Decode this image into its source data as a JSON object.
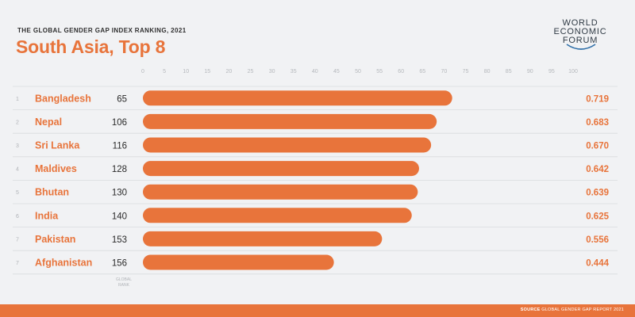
{
  "header": {
    "kicker": "THE GLOBAL GENDER GAP INDEX RANKING, 2021",
    "title": "South Asia, Top 8"
  },
  "logo": {
    "line1": "WORLD",
    "line2": "ECONOMIC",
    "line3": "FORUM"
  },
  "footer": {
    "source_label": "SOURCE",
    "source_text": "GLOBAL GENDER GAP REPORT 2021"
  },
  "colors": {
    "accent": "#e8743b",
    "background": "#f1f2f4",
    "footer": "#e8743b"
  },
  "chart_data": {
    "type": "bar",
    "orientation": "horizontal",
    "x_ticks": [
      "0",
      "5",
      "10",
      "15",
      "20",
      "25",
      "30",
      "35",
      "40",
      "45",
      "50",
      "55",
      "60",
      "65",
      "70",
      "75",
      "80",
      "85",
      "90",
      "95",
      "100"
    ],
    "xlim": [
      0,
      100
    ],
    "rank_column_label": [
      "GLOBAL",
      "RANK"
    ],
    "rows": [
      {
        "order": "1",
        "country": "Bangladesh",
        "global_rank": "65",
        "score": 0.719,
        "label": "0.719"
      },
      {
        "order": "2",
        "country": "Nepal",
        "global_rank": "106",
        "score": 0.683,
        "label": "0.683"
      },
      {
        "order": "3",
        "country": "Sri Lanka",
        "global_rank": "116",
        "score": 0.67,
        "label": "0.670"
      },
      {
        "order": "4",
        "country": "Maldives",
        "global_rank": "128",
        "score": 0.642,
        "label": "0.642"
      },
      {
        "order": "5",
        "country": "Bhutan",
        "global_rank": "130",
        "score": 0.639,
        "label": "0.639"
      },
      {
        "order": "6",
        "country": "India",
        "global_rank": "140",
        "score": 0.625,
        "label": "0.625"
      },
      {
        "order": "7",
        "country": "Pakistan",
        "global_rank": "153",
        "score": 0.556,
        "label": "0.556"
      },
      {
        "order": "7",
        "country": "Afghanistan",
        "global_rank": "156",
        "score": 0.444,
        "label": "0.444"
      }
    ]
  }
}
